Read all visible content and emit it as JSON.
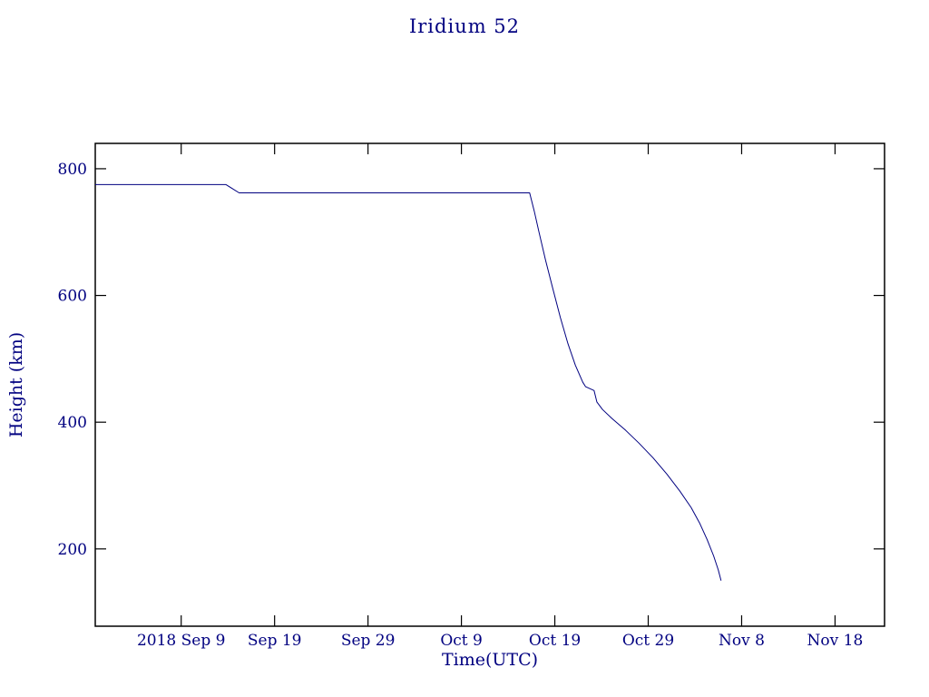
{
  "chart_data": {
    "type": "line",
    "title": "Iridium 52",
    "xlabel": "Time(UTC)",
    "ylabel": "Height (km)",
    "line_color": "#000080",
    "frame_color": "#000000",
    "text_color": "#000080",
    "background": "#ffffff",
    "grid": false,
    "legend": false,
    "x_unit": "days since 2018 Sep 9",
    "xlim": [
      -9.2,
      75.3
    ],
    "ylim": [
      78,
      840
    ],
    "x_ticks": [
      {
        "label": "2018 Sep 9",
        "t": 0
      },
      {
        "label": "Sep 19",
        "t": 10
      },
      {
        "label": "Sep 29",
        "t": 20
      },
      {
        "label": "Oct 9",
        "t": 30
      },
      {
        "label": "Oct 19",
        "t": 40
      },
      {
        "label": "Oct 29",
        "t": 50
      },
      {
        "label": "Nov 8",
        "t": 60
      },
      {
        "label": "Nov 18",
        "t": 70
      }
    ],
    "y_ticks": [
      200,
      400,
      600,
      800
    ],
    "series": [
      {
        "name": "height",
        "points": [
          [
            -9.2,
            775
          ],
          [
            4.8,
            775
          ],
          [
            6.2,
            762
          ],
          [
            37.3,
            762
          ],
          [
            37.8,
            733
          ],
          [
            38.3,
            700
          ],
          [
            39.0,
            656
          ],
          [
            39.8,
            610
          ],
          [
            40.6,
            565
          ],
          [
            41.4,
            524
          ],
          [
            42.2,
            490
          ],
          [
            43.0,
            463
          ],
          [
            43.3,
            456
          ],
          [
            44.2,
            450
          ],
          [
            44.5,
            432
          ],
          [
            45.1,
            420
          ],
          [
            46.1,
            406
          ],
          [
            47.6,
            387
          ],
          [
            49.0,
            367
          ],
          [
            50.5,
            344
          ],
          [
            52.0,
            318
          ],
          [
            53.4,
            291
          ],
          [
            54.6,
            265
          ],
          [
            55.5,
            241
          ],
          [
            56.3,
            215
          ],
          [
            57.0,
            189
          ],
          [
            57.5,
            167
          ],
          [
            57.8,
            150
          ]
        ]
      }
    ]
  }
}
